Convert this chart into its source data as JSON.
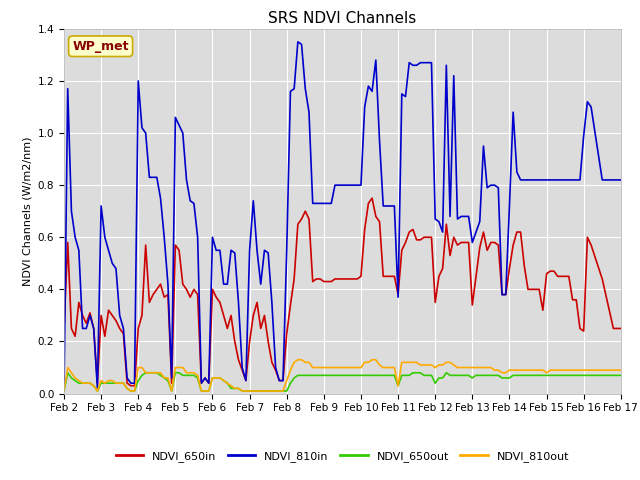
{
  "title": "SRS NDVI Channels",
  "ylabel": "NDVI Channels (W/m2/nm)",
  "annotation": "WP_met",
  "ylim": [
    0,
    1.4
  ],
  "xlim": [
    2,
    17
  ],
  "plot_bg_color": "#dcdcdc",
  "fig_bg_color": "#ffffff",
  "series": {
    "NDVI_650in": {
      "color": "#cc0000",
      "x": [
        2.0,
        2.1,
        2.2,
        2.3,
        2.4,
        2.5,
        2.6,
        2.7,
        2.8,
        2.9,
        3.0,
        3.1,
        3.2,
        3.3,
        3.4,
        3.5,
        3.6,
        3.7,
        3.8,
        3.9,
        4.0,
        4.1,
        4.2,
        4.3,
        4.4,
        4.5,
        4.6,
        4.7,
        4.8,
        4.9,
        5.0,
        5.1,
        5.2,
        5.3,
        5.4,
        5.5,
        5.6,
        5.7,
        5.8,
        5.9,
        6.0,
        6.1,
        6.2,
        6.3,
        6.4,
        6.5,
        6.6,
        6.7,
        6.8,
        6.9,
        7.0,
        7.1,
        7.2,
        7.3,
        7.4,
        7.5,
        7.6,
        7.7,
        7.8,
        7.9,
        8.0,
        8.1,
        8.2,
        8.3,
        8.4,
        8.5,
        8.6,
        8.7,
        8.8,
        8.9,
        9.0,
        9.1,
        9.2,
        9.3,
        9.4,
        9.5,
        9.6,
        9.7,
        9.8,
        9.9,
        10.0,
        10.1,
        10.2,
        10.3,
        10.4,
        10.5,
        10.6,
        10.7,
        10.8,
        10.9,
        11.0,
        11.1,
        11.2,
        11.3,
        11.4,
        11.5,
        11.6,
        11.7,
        11.8,
        11.9,
        12.0,
        12.1,
        12.2,
        12.3,
        12.4,
        12.5,
        12.6,
        12.7,
        12.8,
        12.9,
        13.0,
        13.1,
        13.2,
        13.3,
        13.4,
        13.5,
        13.6,
        13.7,
        13.8,
        13.9,
        14.0,
        14.1,
        14.2,
        14.3,
        14.4,
        14.5,
        14.6,
        14.7,
        14.8,
        14.9,
        15.0,
        15.1,
        15.2,
        15.3,
        15.4,
        15.5,
        15.6,
        15.7,
        15.8,
        15.9,
        16.0,
        16.1,
        16.2,
        16.5,
        16.8,
        17.0
      ],
      "y": [
        0.25,
        0.58,
        0.25,
        0.22,
        0.35,
        0.3,
        0.27,
        0.31,
        0.25,
        0.04,
        0.3,
        0.22,
        0.32,
        0.3,
        0.28,
        0.25,
        0.23,
        0.04,
        0.03,
        0.03,
        0.25,
        0.3,
        0.57,
        0.35,
        0.38,
        0.4,
        0.42,
        0.37,
        0.38,
        0.04,
        0.57,
        0.55,
        0.42,
        0.4,
        0.37,
        0.4,
        0.38,
        0.04,
        0.06,
        0.04,
        0.4,
        0.37,
        0.35,
        0.3,
        0.25,
        0.3,
        0.2,
        0.13,
        0.09,
        0.05,
        0.2,
        0.3,
        0.35,
        0.25,
        0.3,
        0.2,
        0.12,
        0.09,
        0.05,
        0.05,
        0.23,
        0.34,
        0.44,
        0.65,
        0.67,
        0.7,
        0.67,
        0.43,
        0.44,
        0.44,
        0.43,
        0.43,
        0.43,
        0.44,
        0.44,
        0.44,
        0.44,
        0.44,
        0.44,
        0.44,
        0.45,
        0.63,
        0.73,
        0.75,
        0.68,
        0.66,
        0.45,
        0.45,
        0.45,
        0.45,
        0.38,
        0.55,
        0.58,
        0.62,
        0.63,
        0.59,
        0.59,
        0.6,
        0.6,
        0.6,
        0.35,
        0.45,
        0.48,
        0.65,
        0.53,
        0.6,
        0.57,
        0.58,
        0.58,
        0.58,
        0.34,
        0.45,
        0.56,
        0.62,
        0.55,
        0.58,
        0.58,
        0.57,
        0.38,
        0.38,
        0.48,
        0.57,
        0.62,
        0.62,
        0.49,
        0.4,
        0.4,
        0.4,
        0.4,
        0.32,
        0.46,
        0.47,
        0.47,
        0.45,
        0.45,
        0.45,
        0.45,
        0.36,
        0.36,
        0.25,
        0.24,
        0.6,
        0.57,
        0.44,
        0.25,
        0.25
      ]
    },
    "NDVI_810in": {
      "color": "#0000cc",
      "x": [
        2.0,
        2.1,
        2.2,
        2.3,
        2.4,
        2.5,
        2.6,
        2.7,
        2.8,
        2.9,
        3.0,
        3.1,
        3.2,
        3.3,
        3.4,
        3.5,
        3.6,
        3.7,
        3.8,
        3.9,
        4.0,
        4.1,
        4.2,
        4.3,
        4.4,
        4.5,
        4.6,
        4.7,
        4.8,
        4.9,
        5.0,
        5.1,
        5.2,
        5.3,
        5.4,
        5.5,
        5.6,
        5.7,
        5.8,
        5.9,
        6.0,
        6.1,
        6.2,
        6.3,
        6.4,
        6.5,
        6.6,
        6.7,
        6.8,
        6.9,
        7.0,
        7.1,
        7.2,
        7.3,
        7.4,
        7.5,
        7.6,
        7.7,
        7.8,
        7.9,
        8.0,
        8.1,
        8.2,
        8.3,
        8.4,
        8.5,
        8.6,
        8.7,
        8.8,
        8.9,
        9.0,
        9.1,
        9.2,
        9.3,
        9.4,
        9.5,
        9.6,
        9.7,
        9.8,
        9.9,
        10.0,
        10.1,
        10.2,
        10.3,
        10.4,
        10.5,
        10.6,
        10.7,
        10.8,
        10.9,
        11.0,
        11.1,
        11.2,
        11.3,
        11.4,
        11.5,
        11.6,
        11.7,
        11.8,
        11.9,
        12.0,
        12.1,
        12.2,
        12.3,
        12.4,
        12.5,
        12.6,
        12.7,
        12.8,
        12.9,
        13.0,
        13.1,
        13.2,
        13.3,
        13.4,
        13.5,
        13.6,
        13.7,
        13.8,
        13.9,
        14.0,
        14.1,
        14.2,
        14.3,
        14.4,
        14.5,
        14.6,
        14.7,
        14.8,
        14.9,
        15.0,
        15.1,
        15.2,
        15.3,
        15.4,
        15.5,
        15.6,
        15.7,
        15.8,
        15.9,
        16.0,
        16.1,
        16.2,
        16.5,
        16.8,
        17.0
      ],
      "y": [
        0.01,
        1.17,
        0.7,
        0.6,
        0.55,
        0.25,
        0.25,
        0.3,
        0.25,
        0.02,
        0.72,
        0.6,
        0.55,
        0.5,
        0.48,
        0.3,
        0.25,
        0.06,
        0.04,
        0.04,
        1.2,
        1.02,
        1.0,
        0.83,
        0.83,
        0.83,
        0.75,
        0.6,
        0.42,
        0.06,
        1.06,
        1.03,
        1.0,
        0.82,
        0.74,
        0.73,
        0.6,
        0.04,
        0.06,
        0.04,
        0.6,
        0.55,
        0.55,
        0.42,
        0.42,
        0.55,
        0.54,
        0.35,
        0.1,
        0.05,
        0.55,
        0.74,
        0.55,
        0.42,
        0.55,
        0.54,
        0.35,
        0.1,
        0.05,
        0.05,
        0.55,
        1.16,
        1.17,
        1.35,
        1.34,
        1.17,
        1.08,
        0.73,
        0.73,
        0.73,
        0.73,
        0.73,
        0.73,
        0.8,
        0.8,
        0.8,
        0.8,
        0.8,
        0.8,
        0.8,
        0.8,
        1.1,
        1.18,
        1.16,
        1.28,
        0.97,
        0.72,
        0.72,
        0.72,
        0.72,
        0.37,
        1.15,
        1.14,
        1.27,
        1.26,
        1.26,
        1.27,
        1.27,
        1.27,
        1.27,
        0.67,
        0.66,
        0.62,
        1.26,
        0.68,
        1.22,
        0.67,
        0.68,
        0.68,
        0.68,
        0.58,
        0.62,
        0.66,
        0.95,
        0.79,
        0.8,
        0.8,
        0.79,
        0.38,
        0.38,
        0.72,
        1.08,
        0.85,
        0.82,
        0.82,
        0.82,
        0.82,
        0.82,
        0.82,
        0.82,
        0.82,
        0.82,
        0.82,
        0.82,
        0.82,
        0.82,
        0.82,
        0.82,
        0.82,
        0.82,
        0.99,
        1.12,
        1.1,
        0.82,
        0.82,
        0.82
      ]
    },
    "NDVI_650out": {
      "color": "#33cc00",
      "x": [
        2.0,
        2.1,
        2.2,
        2.3,
        2.4,
        2.5,
        2.6,
        2.7,
        2.8,
        2.9,
        3.0,
        3.1,
        3.2,
        3.3,
        3.4,
        3.5,
        3.6,
        3.7,
        3.8,
        3.9,
        4.0,
        4.1,
        4.2,
        4.3,
        4.4,
        4.5,
        4.6,
        4.7,
        4.8,
        4.9,
        5.0,
        5.1,
        5.2,
        5.3,
        5.4,
        5.5,
        5.6,
        5.7,
        5.8,
        5.9,
        6.0,
        6.1,
        6.2,
        6.3,
        6.4,
        6.5,
        6.6,
        6.7,
        6.8,
        6.9,
        7.0,
        7.1,
        7.2,
        7.3,
        7.4,
        7.5,
        7.6,
        7.7,
        7.8,
        7.9,
        8.0,
        8.1,
        8.2,
        8.3,
        8.4,
        8.5,
        8.6,
        8.7,
        8.8,
        8.9,
        9.0,
        9.1,
        9.2,
        9.3,
        9.4,
        9.5,
        9.6,
        9.7,
        9.8,
        9.9,
        10.0,
        10.1,
        10.2,
        10.3,
        10.4,
        10.5,
        10.6,
        10.7,
        10.8,
        10.9,
        11.0,
        11.1,
        11.2,
        11.3,
        11.4,
        11.5,
        11.6,
        11.7,
        11.8,
        11.9,
        12.0,
        12.1,
        12.2,
        12.3,
        12.4,
        12.5,
        12.6,
        12.7,
        12.8,
        12.9,
        13.0,
        13.1,
        13.2,
        13.3,
        13.4,
        13.5,
        13.6,
        13.7,
        13.8,
        13.9,
        14.0,
        14.1,
        14.2,
        14.3,
        14.4,
        14.5,
        14.6,
        14.7,
        14.8,
        14.9,
        15.0,
        15.1,
        15.2,
        15.3,
        15.4,
        15.5,
        15.6,
        15.7,
        15.8,
        15.9,
        16.0,
        16.1,
        16.2,
        16.5,
        16.8,
        17.0
      ],
      "y": [
        0.01,
        0.08,
        0.06,
        0.05,
        0.04,
        0.04,
        0.04,
        0.04,
        0.03,
        0.01,
        0.04,
        0.04,
        0.04,
        0.04,
        0.04,
        0.04,
        0.04,
        0.02,
        0.01,
        0.01,
        0.05,
        0.07,
        0.08,
        0.08,
        0.08,
        0.08,
        0.07,
        0.06,
        0.05,
        0.01,
        0.08,
        0.08,
        0.07,
        0.07,
        0.07,
        0.07,
        0.06,
        0.01,
        0.01,
        0.01,
        0.06,
        0.06,
        0.06,
        0.05,
        0.04,
        0.02,
        0.02,
        0.02,
        0.01,
        0.01,
        0.01,
        0.01,
        0.01,
        0.01,
        0.01,
        0.01,
        0.01,
        0.01,
        0.01,
        0.01,
        0.01,
        0.04,
        0.06,
        0.07,
        0.07,
        0.07,
        0.07,
        0.07,
        0.07,
        0.07,
        0.07,
        0.07,
        0.07,
        0.07,
        0.07,
        0.07,
        0.07,
        0.07,
        0.07,
        0.07,
        0.07,
        0.07,
        0.07,
        0.07,
        0.07,
        0.07,
        0.07,
        0.07,
        0.07,
        0.07,
        0.03,
        0.07,
        0.07,
        0.07,
        0.08,
        0.08,
        0.08,
        0.07,
        0.07,
        0.07,
        0.04,
        0.06,
        0.06,
        0.08,
        0.07,
        0.07,
        0.07,
        0.07,
        0.07,
        0.07,
        0.06,
        0.07,
        0.07,
        0.07,
        0.07,
        0.07,
        0.07,
        0.07,
        0.06,
        0.06,
        0.06,
        0.07,
        0.07,
        0.07,
        0.07,
        0.07,
        0.07,
        0.07,
        0.07,
        0.07,
        0.07,
        0.07,
        0.07,
        0.07,
        0.07,
        0.07,
        0.07,
        0.07,
        0.07,
        0.07,
        0.07,
        0.07,
        0.07,
        0.07,
        0.07,
        0.07
      ]
    },
    "NDVI_810out": {
      "color": "#ffaa00",
      "x": [
        2.0,
        2.1,
        2.2,
        2.3,
        2.4,
        2.5,
        2.6,
        2.7,
        2.8,
        2.9,
        3.0,
        3.1,
        3.2,
        3.3,
        3.4,
        3.5,
        3.6,
        3.7,
        3.8,
        3.9,
        4.0,
        4.1,
        4.2,
        4.3,
        4.4,
        4.5,
        4.6,
        4.7,
        4.8,
        4.9,
        5.0,
        5.1,
        5.2,
        5.3,
        5.4,
        5.5,
        5.6,
        5.7,
        5.8,
        5.9,
        6.0,
        6.1,
        6.2,
        6.3,
        6.4,
        6.5,
        6.6,
        6.7,
        6.8,
        6.9,
        7.0,
        7.1,
        7.2,
        7.3,
        7.4,
        7.5,
        7.6,
        7.7,
        7.8,
        7.9,
        8.0,
        8.1,
        8.2,
        8.3,
        8.4,
        8.5,
        8.6,
        8.7,
        8.8,
        8.9,
        9.0,
        9.1,
        9.2,
        9.3,
        9.4,
        9.5,
        9.6,
        9.7,
        9.8,
        9.9,
        10.0,
        10.1,
        10.2,
        10.3,
        10.4,
        10.5,
        10.6,
        10.7,
        10.8,
        10.9,
        11.0,
        11.1,
        11.2,
        11.3,
        11.4,
        11.5,
        11.6,
        11.7,
        11.8,
        11.9,
        12.0,
        12.1,
        12.2,
        12.3,
        12.4,
        12.5,
        12.6,
        12.7,
        12.8,
        12.9,
        13.0,
        13.1,
        13.2,
        13.3,
        13.4,
        13.5,
        13.6,
        13.7,
        13.8,
        13.9,
        14.0,
        14.1,
        14.2,
        14.3,
        14.4,
        14.5,
        14.6,
        14.7,
        14.8,
        14.9,
        15.0,
        15.1,
        15.2,
        15.3,
        15.4,
        15.5,
        15.6,
        15.7,
        15.8,
        15.9,
        16.0,
        16.1,
        16.2,
        16.5,
        16.8,
        17.0
      ],
      "y": [
        0.01,
        0.1,
        0.08,
        0.06,
        0.05,
        0.04,
        0.04,
        0.04,
        0.03,
        0.01,
        0.05,
        0.04,
        0.05,
        0.05,
        0.04,
        0.04,
        0.04,
        0.02,
        0.01,
        0.01,
        0.1,
        0.1,
        0.08,
        0.08,
        0.08,
        0.08,
        0.08,
        0.06,
        0.06,
        0.01,
        0.1,
        0.1,
        0.1,
        0.08,
        0.08,
        0.08,
        0.07,
        0.01,
        0.01,
        0.01,
        0.06,
        0.06,
        0.06,
        0.05,
        0.04,
        0.03,
        0.02,
        0.02,
        0.01,
        0.01,
        0.01,
        0.01,
        0.01,
        0.01,
        0.01,
        0.01,
        0.01,
        0.01,
        0.01,
        0.01,
        0.05,
        0.09,
        0.12,
        0.13,
        0.13,
        0.12,
        0.12,
        0.1,
        0.1,
        0.1,
        0.1,
        0.1,
        0.1,
        0.1,
        0.1,
        0.1,
        0.1,
        0.1,
        0.1,
        0.1,
        0.1,
        0.12,
        0.12,
        0.13,
        0.13,
        0.11,
        0.1,
        0.1,
        0.1,
        0.1,
        0.03,
        0.12,
        0.12,
        0.12,
        0.12,
        0.12,
        0.11,
        0.11,
        0.11,
        0.11,
        0.1,
        0.11,
        0.11,
        0.12,
        0.12,
        0.11,
        0.1,
        0.1,
        0.1,
        0.1,
        0.1,
        0.1,
        0.1,
        0.1,
        0.1,
        0.1,
        0.09,
        0.09,
        0.08,
        0.08,
        0.09,
        0.09,
        0.09,
        0.09,
        0.09,
        0.09,
        0.09,
        0.09,
        0.09,
        0.09,
        0.08,
        0.09,
        0.09,
        0.09,
        0.09,
        0.09,
        0.09,
        0.09,
        0.09,
        0.09,
        0.09,
        0.09,
        0.09,
        0.09,
        0.09,
        0.09
      ]
    }
  },
  "xtick_locs": [
    2,
    3,
    4,
    5,
    6,
    7,
    8,
    9,
    10,
    11,
    12,
    13,
    14,
    15,
    16,
    17
  ],
  "xtick_labels": [
    "Feb 2",
    "Feb 3",
    "Feb 4",
    "Feb 5",
    "Feb 6",
    "Feb 7",
    "Feb 8",
    "Feb 9",
    "Feb 10",
    "Feb 11",
    "Feb 12",
    "Feb 13",
    "Feb 14",
    "Feb 15",
    "Feb 16",
    "Feb 17"
  ],
  "ytick_locs": [
    0.0,
    0.2,
    0.4,
    0.6,
    0.8,
    1.0,
    1.2,
    1.4
  ],
  "legend_order": [
    "NDVI_650in",
    "NDVI_810in",
    "NDVI_650out",
    "NDVI_810out"
  ],
  "annotation_box_facecolor": "#ffffcc",
  "annotation_box_edgecolor": "#ccaa00",
  "annotation_text_color": "#880000",
  "title_fontsize": 11,
  "ylabel_fontsize": 8,
  "tick_fontsize": 7.5,
  "legend_fontsize": 8
}
